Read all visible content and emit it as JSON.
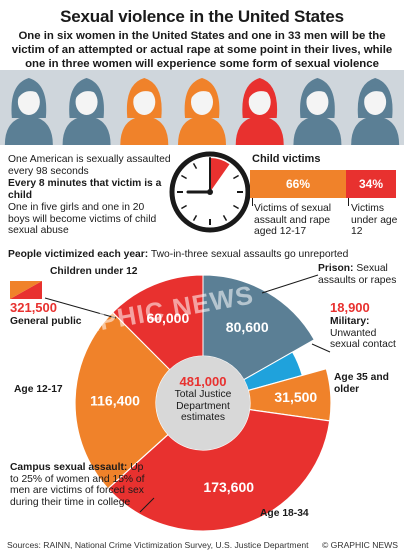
{
  "header": {
    "title": "Sexual violence in the United States",
    "subtitle": "One in six women in the United States and one in 33 men will be the victim of an attempted or actual rape at some point in their lives, while one in three women will experience some form of sexual violence"
  },
  "people_row": {
    "band_color": "#cfd6dc",
    "figures": [
      {
        "icon": "woman-figure-icon",
        "color": "#5b7f95"
      },
      {
        "icon": "woman-figure-icon",
        "color": "#5b7f95"
      },
      {
        "icon": "woman-figure-icon",
        "color": "#f0822a"
      },
      {
        "icon": "woman-figure-icon",
        "color": "#f0822a"
      },
      {
        "icon": "woman-figure-icon",
        "color": "#e8312f"
      },
      {
        "icon": "woman-figure-icon",
        "color": "#5b7f95"
      },
      {
        "icon": "woman-figure-icon",
        "color": "#5b7f95"
      }
    ]
  },
  "clock_note": {
    "line1": "One American is sexually assaulted every 98 seconds",
    "line2": "Every 8 minutes that victim is a child",
    "line3": "One in five girls and one in 20 boys will become victims of child sexual abuse"
  },
  "child_victims": {
    "title": "Child victims",
    "bars": [
      {
        "pct_label": "66%",
        "value": 66,
        "label": "Victims of sexual assault and rape aged 12-17",
        "color": "#f0822a"
      },
      {
        "pct_label": "34%",
        "value": 34,
        "label": "Victims under age 12",
        "color": "#e8312f"
      }
    ]
  },
  "colors": {
    "orange": "#f0822a",
    "red": "#e8312f",
    "steel": "#5b7f95",
    "light_blue": "#1fa2dc",
    "donut_center": "#d8d8d8"
  },
  "donut": {
    "heading_bold": "People victimized each year:",
    "heading_rest": " Two-in-three sexual assaults go unreported",
    "center_value": "481,000",
    "center_label_line1": "Total Justice",
    "center_label_line2": "Department",
    "center_label_line3": "estimates",
    "legend_children_label": "Children under 12",
    "general_public_value": "321,500",
    "general_public_label": "General public",
    "prison_label_bold": "Prison:",
    "prison_label_rest": " Sexual assaults or rapes",
    "military_value": "18,900",
    "military_label_bold": "Military:",
    "military_label_rest": " Unwanted sexual contact",
    "campus_label_bold": "Campus sexual assault:",
    "campus_label_rest": " Up to 25% of women and 15% of men are victims of forced sex during their time in college",
    "watermark": "GRAPHIC NEWS"
  },
  "chart_data": {
    "type": "pie",
    "title": "People victimized each year",
    "total": 481000,
    "inner_ring": [
      {
        "name": "Prison",
        "value": 80600,
        "label": "80,600"
      },
      {
        "name": "Military",
        "value": 18900,
        "label": ""
      },
      {
        "name": "General public",
        "value": 321500,
        "label": ""
      },
      {
        "name": "Children under 12",
        "value": 60000,
        "label": "60,000"
      }
    ],
    "outer_ring_general_public": [
      {
        "name": "Age 35 and older",
        "value": 31500,
        "label": "31,500"
      },
      {
        "name": "Age 18-34",
        "value": 173600,
        "label": "173,600"
      },
      {
        "name": "Age 12-17",
        "value": 116400,
        "label": "116,400"
      }
    ],
    "labels": [
      "Age 35 and older",
      "Age 18-34",
      "Age 12-17"
    ]
  },
  "footer": {
    "sources": "Sources: RAINN, National Crime Victimization Survey, U.S. Justice Department",
    "credit": "© GRAPHIC NEWS"
  }
}
